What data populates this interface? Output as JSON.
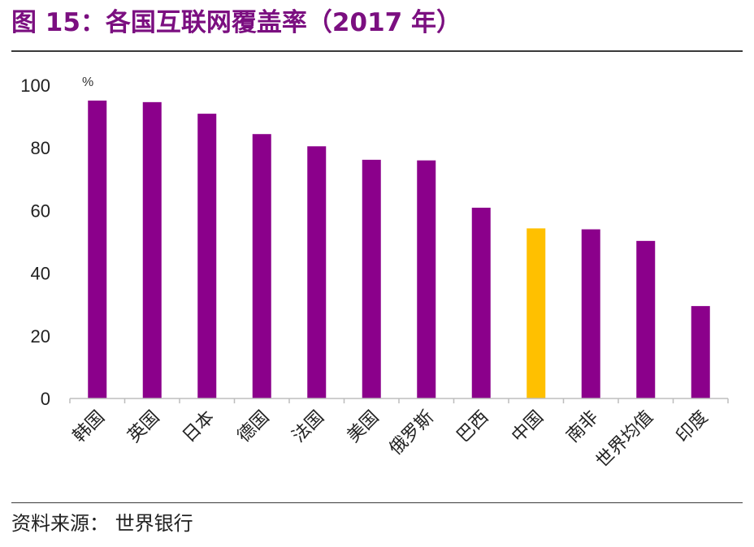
{
  "title": "图 15：各国互联网覆盖率（2017 年）",
  "source": "资料来源： 世界银行",
  "chart_data": {
    "type": "bar",
    "unit": "%",
    "categories": [
      "韩国",
      "英国",
      "日本",
      "德国",
      "法国",
      "美国",
      "俄罗斯",
      "巴西",
      "中国",
      "南非",
      "世界均值",
      "印度"
    ],
    "values": [
      95.1,
      94.6,
      90.9,
      84.4,
      80.5,
      76.2,
      76.0,
      60.9,
      54.3,
      54.0,
      50.3,
      29.5
    ],
    "ylim": [
      0,
      100
    ],
    "yticks": [
      "0",
      "20",
      "40",
      "60",
      "80",
      "100"
    ],
    "bar_color": "#8b008b",
    "highlight_color": "#ffc000",
    "highlight_category": "中国",
    "grid": false,
    "legend": "none"
  }
}
